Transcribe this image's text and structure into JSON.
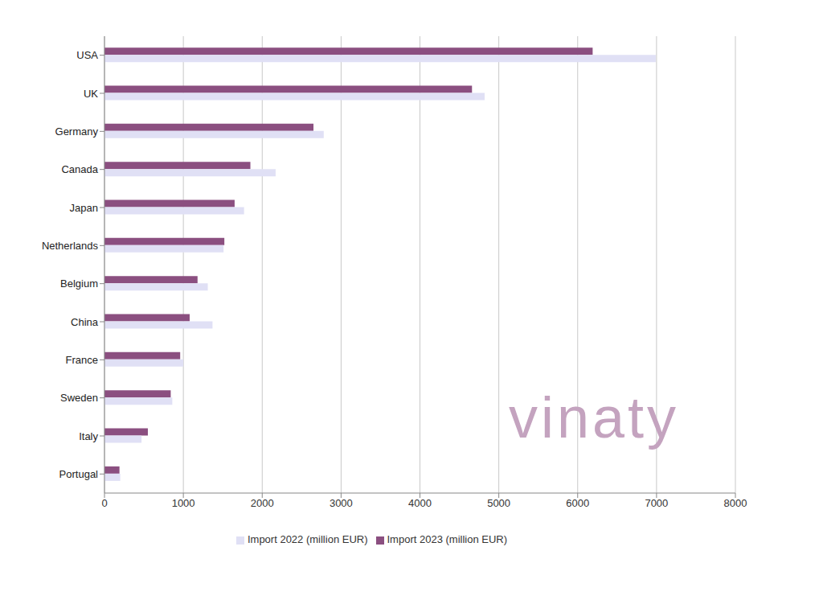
{
  "chart_data": {
    "type": "bar",
    "orientation": "horizontal",
    "categories": [
      "USA",
      "UK",
      "Germany",
      "Canada",
      "Japan",
      "Netherlands",
      "Belgium",
      "China",
      "France",
      "Sweden",
      "Italy",
      "Portugal"
    ],
    "series": [
      {
        "name": "Import 2023 (million EUR)",
        "color": "#8b4f80",
        "values": [
          6190,
          4660,
          2650,
          1850,
          1650,
          1520,
          1180,
          1080,
          960,
          840,
          550,
          190
        ]
      },
      {
        "name": "Import 2022 (million EUR)",
        "color": "#e0e0f5",
        "values": [
          6990,
          4820,
          2780,
          2170,
          1770,
          1510,
          1310,
          1370,
          1000,
          860,
          470,
          200
        ]
      }
    ],
    "xlim": [
      0,
      8000
    ],
    "xticks": [
      0,
      1000,
      2000,
      3000,
      4000,
      5000,
      6000,
      7000,
      8000
    ],
    "grid": true,
    "legend": "bottom",
    "annotation": "vinaty"
  }
}
